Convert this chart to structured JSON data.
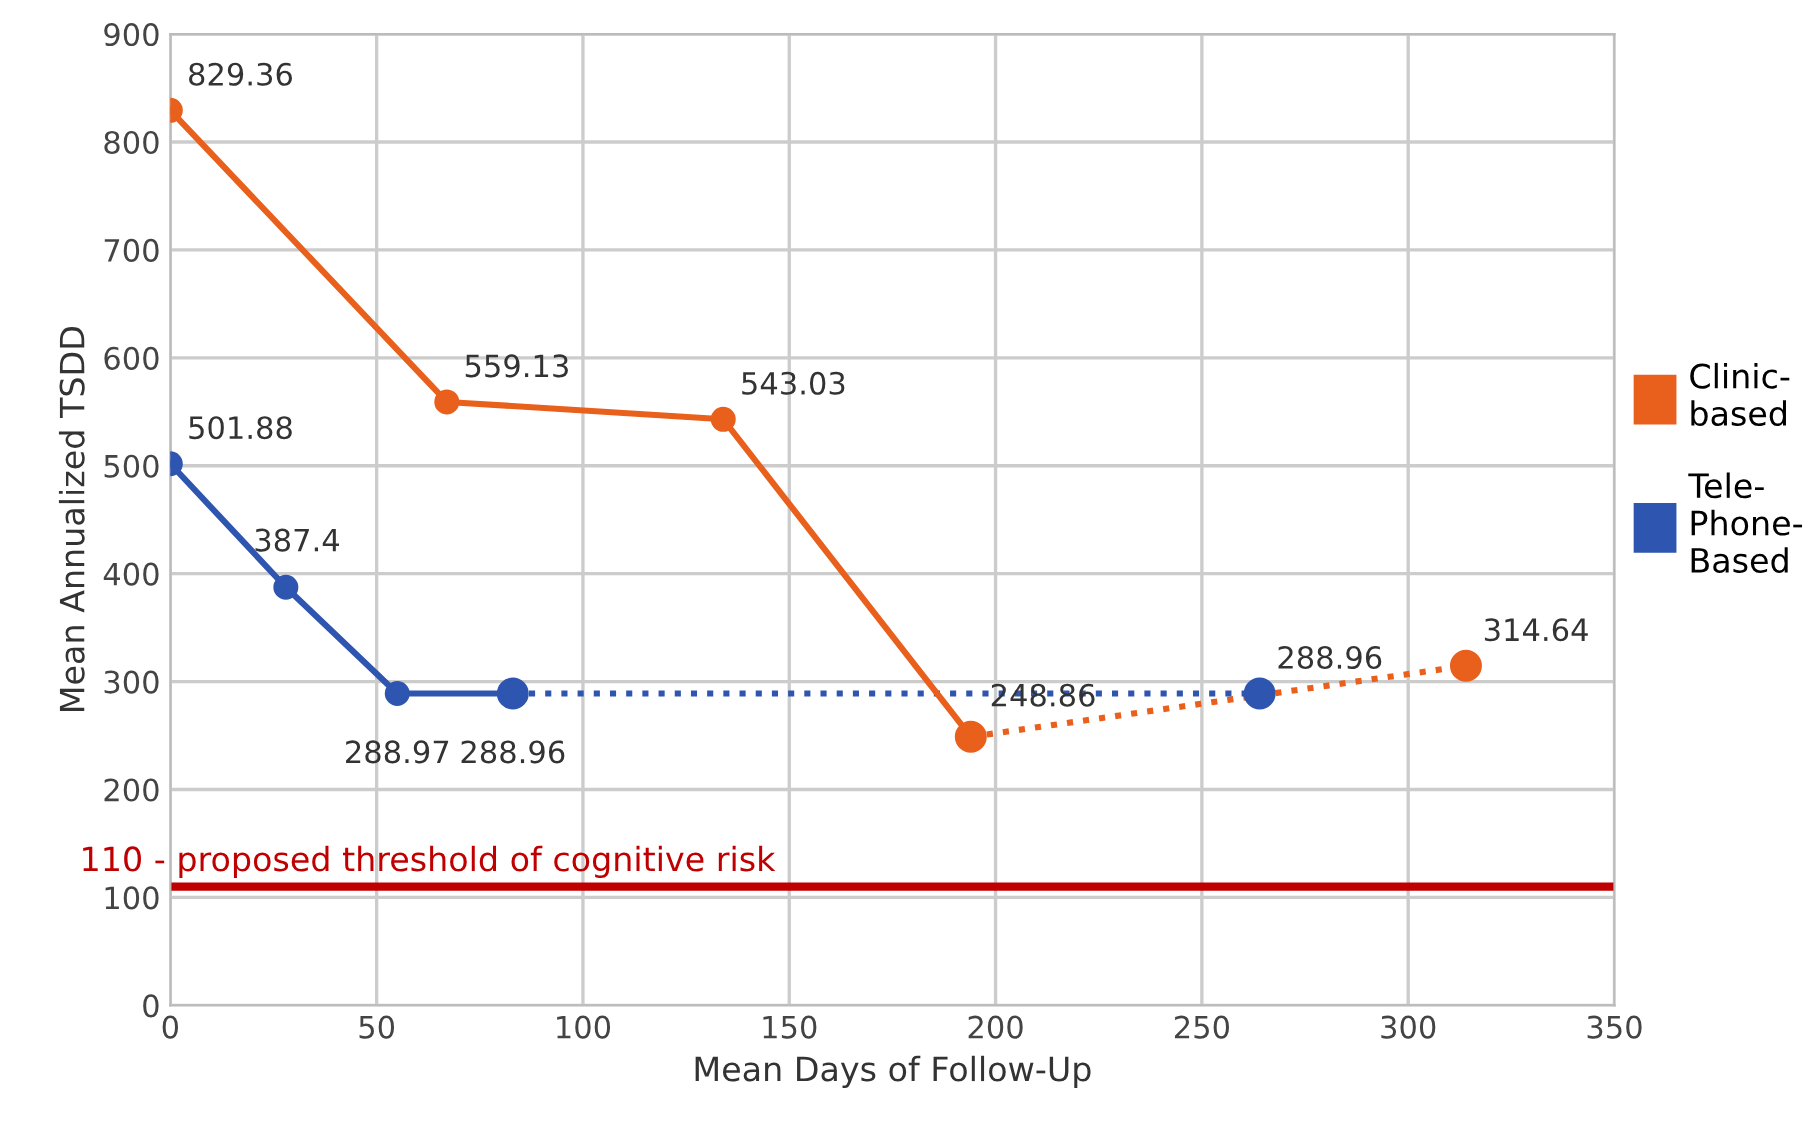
{
  "chart_data": {
    "type": "line",
    "xlabel": "Mean Days of Follow-Up",
    "ylabel": "Mean Annualized TSDD",
    "xlim": [
      0,
      350
    ],
    "xticks": [
      0,
      50,
      100,
      150,
      200,
      250,
      300,
      350
    ],
    "ylim": [
      0,
      900
    ],
    "yticks": [
      0,
      100,
      200,
      300,
      400,
      500,
      600,
      700,
      800,
      900
    ],
    "grid": true,
    "legend": "right",
    "marker": "circle",
    "series": [
      {
        "name": "Clinic-\nbased",
        "color": "#e8601c",
        "x": [
          0,
          67,
          134,
          194
        ],
        "values": [
          829.36,
          559.13,
          543.03,
          248.86
        ],
        "value_labels": [
          "829.36",
          "559.13",
          "543.03",
          "248.86"
        ],
        "line_style": "solid"
      },
      {
        "color": "#e8601c",
        "x": [
          194,
          314
        ],
        "values": [
          248.86,
          314.64
        ],
        "value_labels": [
          null,
          "314.64"
        ],
        "line_style": "dotted"
      },
      {
        "name": "Tele-\nPhone-\nBased",
        "color": "#2e55b0",
        "x": [
          0,
          28,
          55,
          83
        ],
        "values": [
          501.88,
          387.4,
          288.97,
          288.96
        ],
        "value_labels": [
          "501.88",
          "387.4",
          "288.97",
          "288.96"
        ],
        "line_style": "solid"
      },
      {
        "color": "#2e55b0",
        "x": [
          83,
          264
        ],
        "values": [
          288.96,
          288.96
        ],
        "value_labels": [
          null,
          "288.96"
        ],
        "line_style": "dotted"
      }
    ],
    "ref_lines": [
      {
        "axis": "y",
        "value": 110,
        "label": "110 - proposed threshold of cognitive risk",
        "color": "#c00000"
      }
    ]
  }
}
